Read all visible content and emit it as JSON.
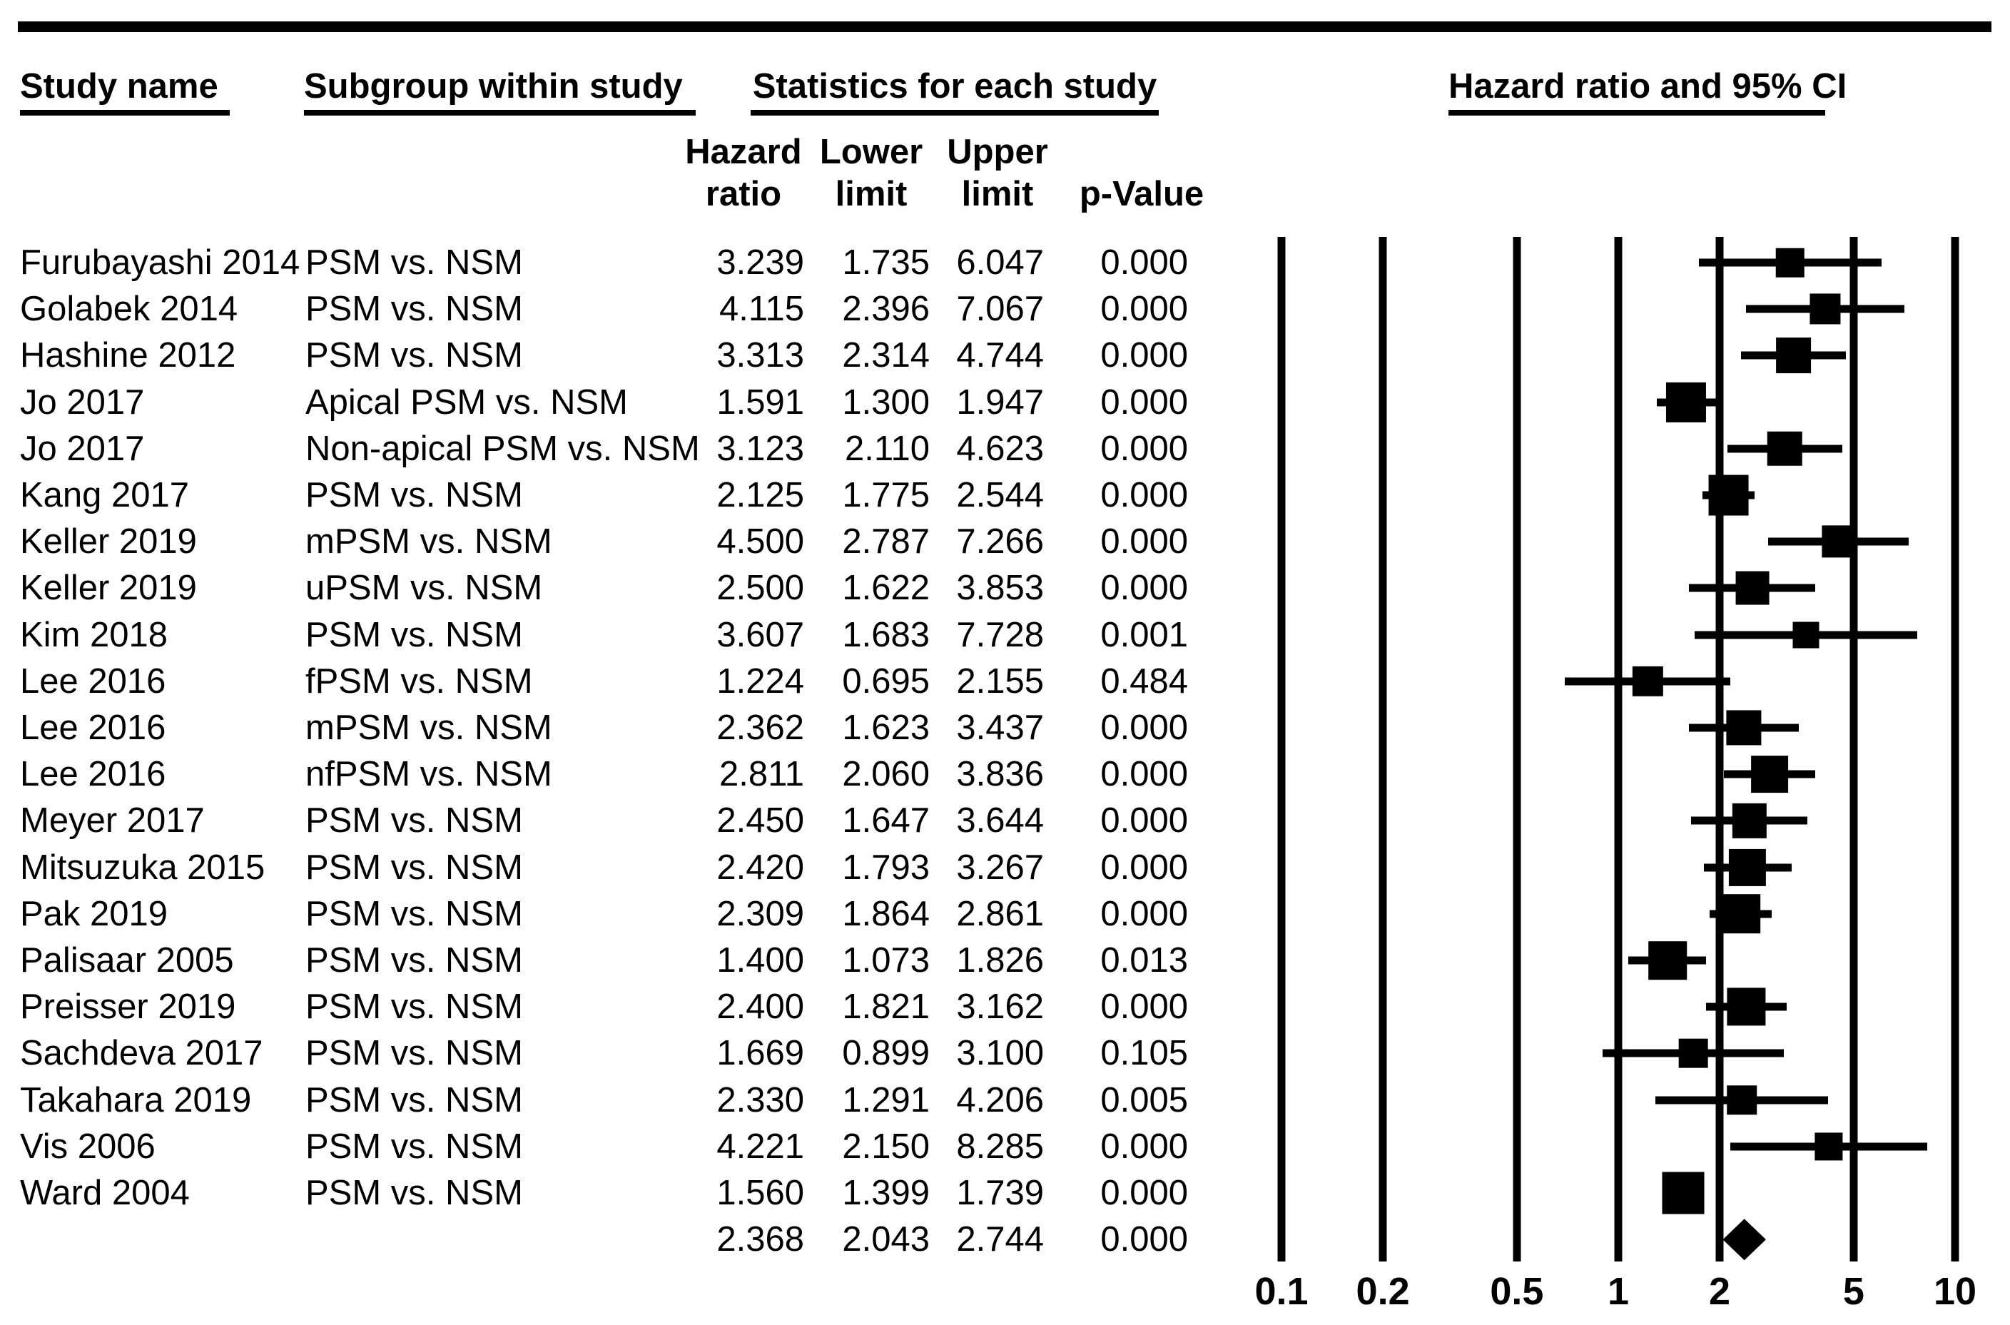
{
  "figure": {
    "group_headers": {
      "study": "Study name",
      "subgroup": "Subgroup within study",
      "stats": "Statistics for each study",
      "plot": "Hazard ratio and 95% CI"
    },
    "stat_headers": {
      "hazard_l1": "Hazard",
      "hazard_l2": "ratio",
      "lower_l1": "Lower",
      "lower_l2": "limit",
      "upper_l1": "Upper",
      "upper_l2": "limit",
      "p_l2": "p-Value"
    }
  },
  "rows": [
    {
      "study": "Furubayashi 2014",
      "subgroup": "PSM vs. NSM",
      "hr": "3.239",
      "lower": "1.735",
      "upper": "6.047",
      "p": "0.000"
    },
    {
      "study": "Golabek 2014",
      "subgroup": "PSM vs. NSM",
      "hr": "4.115",
      "lower": "2.396",
      "upper": "7.067",
      "p": "0.000"
    },
    {
      "study": "Hashine 2012",
      "subgroup": "PSM vs. NSM",
      "hr": "3.313",
      "lower": "2.314",
      "upper": "4.744",
      "p": "0.000"
    },
    {
      "study": "Jo 2017",
      "subgroup": "Apical PSM vs. NSM",
      "hr": "1.591",
      "lower": "1.300",
      "upper": "1.947",
      "p": "0.000"
    },
    {
      "study": "Jo 2017",
      "subgroup": "Non-apical PSM vs. NSM",
      "hr": "3.123",
      "lower": "2.110",
      "upper": "4.623",
      "p": "0.000"
    },
    {
      "study": "Kang 2017",
      "subgroup": "PSM vs. NSM",
      "hr": "2.125",
      "lower": "1.775",
      "upper": "2.544",
      "p": "0.000"
    },
    {
      "study": "Keller 2019",
      "subgroup": "mPSM vs. NSM",
      "hr": "4.500",
      "lower": "2.787",
      "upper": "7.266",
      "p": "0.000"
    },
    {
      "study": "Keller 2019",
      "subgroup": "uPSM vs. NSM",
      "hr": "2.500",
      "lower": "1.622",
      "upper": "3.853",
      "p": "0.000"
    },
    {
      "study": "Kim 2018",
      "subgroup": "PSM vs. NSM",
      "hr": "3.607",
      "lower": "1.683",
      "upper": "7.728",
      "p": "0.001"
    },
    {
      "study": "Lee 2016",
      "subgroup": "fPSM vs. NSM",
      "hr": "1.224",
      "lower": "0.695",
      "upper": "2.155",
      "p": "0.484"
    },
    {
      "study": "Lee 2016",
      "subgroup": "mPSM vs. NSM",
      "hr": "2.362",
      "lower": "1.623",
      "upper": "3.437",
      "p": "0.000"
    },
    {
      "study": "Lee 2016",
      "subgroup": "nfPSM vs. NSM",
      "hr": "2.811",
      "lower": "2.060",
      "upper": "3.836",
      "p": "0.000"
    },
    {
      "study": "Meyer 2017",
      "subgroup": "PSM vs. NSM",
      "hr": "2.450",
      "lower": "1.647",
      "upper": "3.644",
      "p": "0.000"
    },
    {
      "study": "Mitsuzuka 2015",
      "subgroup": "PSM vs. NSM",
      "hr": "2.420",
      "lower": "1.793",
      "upper": "3.267",
      "p": "0.000"
    },
    {
      "study": "Pak 2019",
      "subgroup": "PSM vs. NSM",
      "hr": "2.309",
      "lower": "1.864",
      "upper": "2.861",
      "p": "0.000"
    },
    {
      "study": "Palisaar 2005",
      "subgroup": "PSM vs. NSM",
      "hr": "1.400",
      "lower": "1.073",
      "upper": "1.826",
      "p": "0.013"
    },
    {
      "study": "Preisser 2019",
      "subgroup": "PSM vs. NSM",
      "hr": "2.400",
      "lower": "1.821",
      "upper": "3.162",
      "p": "0.000"
    },
    {
      "study": "Sachdeva 2017",
      "subgroup": "PSM vs. NSM",
      "hr": "1.669",
      "lower": "0.899",
      "upper": "3.100",
      "p": "0.105"
    },
    {
      "study": "Takahara 2019",
      "subgroup": "PSM vs. NSM",
      "hr": "2.330",
      "lower": "1.291",
      "upper": "4.206",
      "p": "0.005"
    },
    {
      "study": "Vis 2006",
      "subgroup": "PSM vs. NSM",
      "hr": "4.221",
      "lower": "2.150",
      "upper": "8.285",
      "p": "0.000"
    },
    {
      "study": "Ward 2004",
      "subgroup": "PSM vs. NSM",
      "hr": "1.560",
      "lower": "1.399",
      "upper": "1.739",
      "p": "0.000"
    }
  ],
  "summary": {
    "hr": "2.368",
    "lower": "2.043",
    "upper": "2.744",
    "p": "0.000"
  },
  "axis_ticks": [
    "0.1",
    "0.2",
    "0.5",
    "1",
    "2",
    "5",
    "10"
  ],
  "colors": {
    "ink": "#000000",
    "background": "#ffffff"
  },
  "chart_data": {
    "type": "scatter",
    "variant": "forest_plot",
    "title": "Hazard ratio and 95% CI",
    "x_scale": "log10",
    "x_range": [
      0.1,
      10
    ],
    "x_ticks": [
      0.1,
      0.2,
      0.5,
      1,
      2,
      5,
      10
    ],
    "marker": "square",
    "summary_marker": "diamond",
    "series": [
      {
        "name": "PSM vs. NSM hazard ratios",
        "points": [
          {
            "study": "Furubayashi 2014",
            "subgroup": "PSM vs. NSM",
            "hazard_ratio": 3.239,
            "ci_lower": 1.735,
            "ci_upper": 6.047,
            "p_value": 0.0
          },
          {
            "study": "Golabek 2014",
            "subgroup": "PSM vs. NSM",
            "hazard_ratio": 4.115,
            "ci_lower": 2.396,
            "ci_upper": 7.067,
            "p_value": 0.0
          },
          {
            "study": "Hashine 2012",
            "subgroup": "PSM vs. NSM",
            "hazard_ratio": 3.313,
            "ci_lower": 2.314,
            "ci_upper": 4.744,
            "p_value": 0.0
          },
          {
            "study": "Jo 2017",
            "subgroup": "Apical PSM vs. NSM",
            "hazard_ratio": 1.591,
            "ci_lower": 1.3,
            "ci_upper": 1.947,
            "p_value": 0.0
          },
          {
            "study": "Jo 2017",
            "subgroup": "Non-apical PSM vs. NSM",
            "hazard_ratio": 3.123,
            "ci_lower": 2.11,
            "ci_upper": 4.623,
            "p_value": 0.0
          },
          {
            "study": "Kang 2017",
            "subgroup": "PSM vs. NSM",
            "hazard_ratio": 2.125,
            "ci_lower": 1.775,
            "ci_upper": 2.544,
            "p_value": 0.0
          },
          {
            "study": "Keller 2019",
            "subgroup": "mPSM vs. NSM",
            "hazard_ratio": 4.5,
            "ci_lower": 2.787,
            "ci_upper": 7.266,
            "p_value": 0.0
          },
          {
            "study": "Keller 2019",
            "subgroup": "uPSM vs. NSM",
            "hazard_ratio": 2.5,
            "ci_lower": 1.622,
            "ci_upper": 3.853,
            "p_value": 0.0
          },
          {
            "study": "Kim 2018",
            "subgroup": "PSM vs. NSM",
            "hazard_ratio": 3.607,
            "ci_lower": 1.683,
            "ci_upper": 7.728,
            "p_value": 0.001
          },
          {
            "study": "Lee 2016",
            "subgroup": "fPSM vs. NSM",
            "hazard_ratio": 1.224,
            "ci_lower": 0.695,
            "ci_upper": 2.155,
            "p_value": 0.484
          },
          {
            "study": "Lee 2016",
            "subgroup": "mPSM vs. NSM",
            "hazard_ratio": 2.362,
            "ci_lower": 1.623,
            "ci_upper": 3.437,
            "p_value": 0.0
          },
          {
            "study": "Lee 2016",
            "subgroup": "nfPSM vs. NSM",
            "hazard_ratio": 2.811,
            "ci_lower": 2.06,
            "ci_upper": 3.836,
            "p_value": 0.0
          },
          {
            "study": "Meyer 2017",
            "subgroup": "PSM vs. NSM",
            "hazard_ratio": 2.45,
            "ci_lower": 1.647,
            "ci_upper": 3.644,
            "p_value": 0.0
          },
          {
            "study": "Mitsuzuka 2015",
            "subgroup": "PSM vs. NSM",
            "hazard_ratio": 2.42,
            "ci_lower": 1.793,
            "ci_upper": 3.267,
            "p_value": 0.0
          },
          {
            "study": "Pak 2019",
            "subgroup": "PSM vs. NSM",
            "hazard_ratio": 2.309,
            "ci_lower": 1.864,
            "ci_upper": 2.861,
            "p_value": 0.0
          },
          {
            "study": "Palisaar 2005",
            "subgroup": "PSM vs. NSM",
            "hazard_ratio": 1.4,
            "ci_lower": 1.073,
            "ci_upper": 1.826,
            "p_value": 0.013
          },
          {
            "study": "Preisser 2019",
            "subgroup": "PSM vs. NSM",
            "hazard_ratio": 2.4,
            "ci_lower": 1.821,
            "ci_upper": 3.162,
            "p_value": 0.0
          },
          {
            "study": "Sachdeva 2017",
            "subgroup": "PSM vs. NSM",
            "hazard_ratio": 1.669,
            "ci_lower": 0.899,
            "ci_upper": 3.1,
            "p_value": 0.105
          },
          {
            "study": "Takahara 2019",
            "subgroup": "PSM vs. NSM",
            "hazard_ratio": 2.33,
            "ci_lower": 1.291,
            "ci_upper": 4.206,
            "p_value": 0.005
          },
          {
            "study": "Vis 2006",
            "subgroup": "PSM vs. NSM",
            "hazard_ratio": 4.221,
            "ci_lower": 2.15,
            "ci_upper": 8.285,
            "p_value": 0.0
          },
          {
            "study": "Ward 2004",
            "subgroup": "PSM vs. NSM",
            "hazard_ratio": 1.56,
            "ci_lower": 1.399,
            "ci_upper": 1.739,
            "p_value": 0.0
          }
        ]
      }
    ],
    "summary": {
      "hazard_ratio": 2.368,
      "ci_lower": 2.043,
      "ci_upper": 2.744,
      "p_value": 0.0
    }
  }
}
